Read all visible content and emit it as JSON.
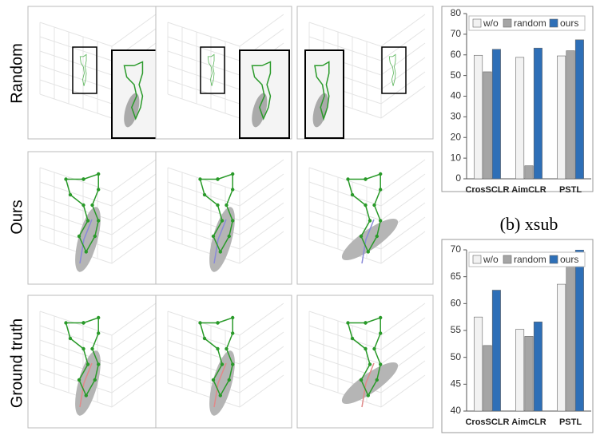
{
  "figure": {
    "row_labels": [
      "Random",
      "Ours",
      "Ground truth"
    ]
  },
  "caption": "(b) xsub",
  "chart_data": [
    {
      "type": "bar",
      "categories": [
        "CrosSCLR",
        "AimCLR",
        "PSTL"
      ],
      "series": [
        {
          "name": "w/o",
          "color": "#f2f2f2",
          "values": [
            59.8,
            58.8,
            59.5
          ]
        },
        {
          "name": "random",
          "color": "#a5a5a5",
          "values": [
            51.8,
            6.3,
            62.0
          ]
        },
        {
          "name": "ours",
          "color": "#2e6fb7",
          "values": [
            62.7,
            63.3,
            67.3
          ]
        }
      ],
      "ylim": [
        0,
        80
      ],
      "yticks": [
        0,
        10,
        20,
        30,
        40,
        50,
        60,
        70,
        80
      ],
      "grid": false,
      "legend": "top-left"
    },
    {
      "type": "bar",
      "categories": [
        "CrosSCLR",
        "AimCLR",
        "PSTL"
      ],
      "series": [
        {
          "name": "w/o",
          "color": "#f2f2f2",
          "values": [
            57.5,
            55.2,
            63.6
          ]
        },
        {
          "name": "random",
          "color": "#a5a5a5",
          "values": [
            52.2,
            53.9,
            68.0
          ]
        },
        {
          "name": "ours",
          "color": "#2e6fb7",
          "values": [
            62.5,
            56.6,
            70
          ]
        }
      ],
      "ylim": [
        40,
        70
      ],
      "yticks": [
        40,
        45,
        50,
        55,
        60,
        65,
        70
      ],
      "grid": false,
      "legend": "top-left"
    }
  ]
}
